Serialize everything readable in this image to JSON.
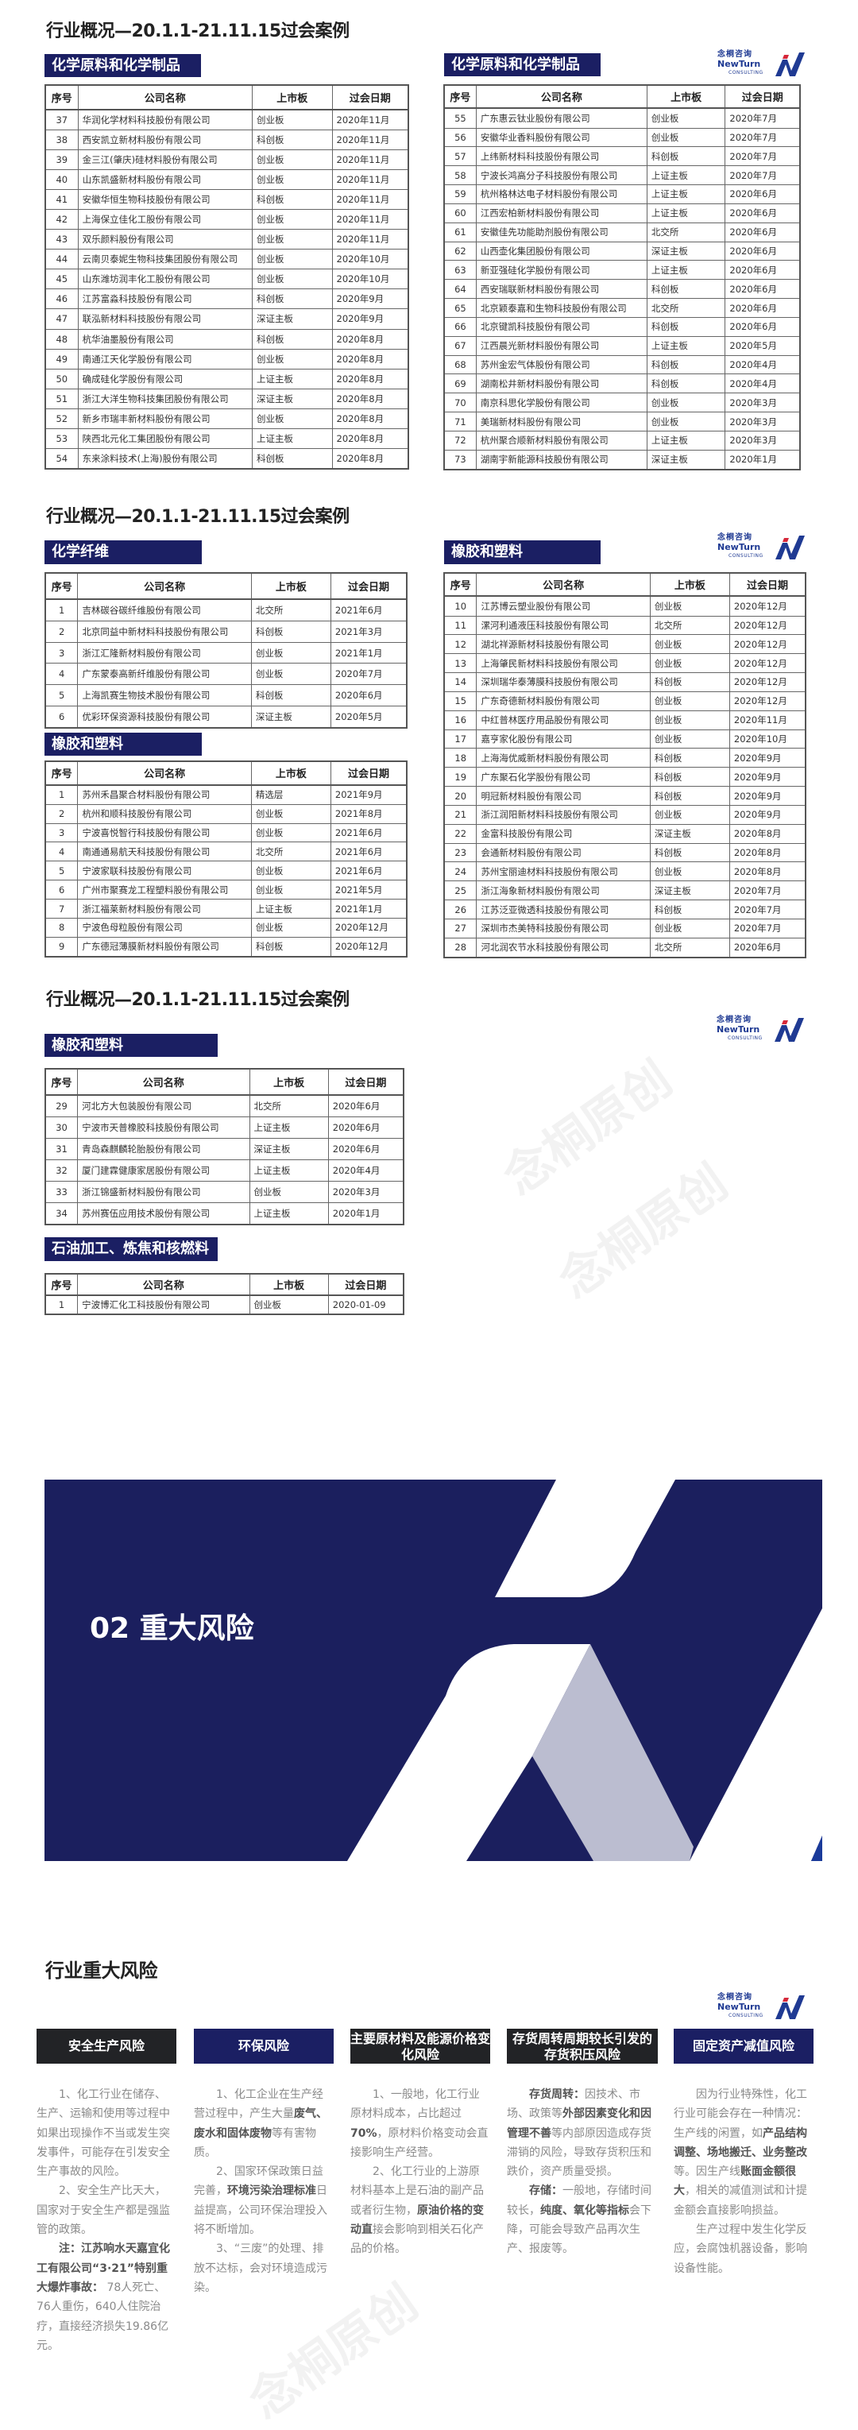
{
  "page_title": "行业概况—20.1.1-21.11.15过会案例",
  "logo": {
    "cn": "念桐咨询",
    "en": "NewTurn",
    "sub": "CONSULTING",
    "colors": {
      "blue": "#1f3a93",
      "red": "#d6283a"
    }
  },
  "watermark": "念桐原创",
  "table_headers": [
    "序号",
    "公司名称",
    "上市板",
    "过会日期"
  ],
  "colors": {
    "band": "#1b1f63",
    "banner": "#1b1f5e",
    "banner_accent": "#bbbdd0",
    "dark_header": "#222326"
  },
  "section1": {
    "left": {
      "category": "化学原料和化学制品",
      "rows": [
        [
          "37",
          "华润化学材料科技股份有限公司",
          "创业板",
          "2020年11月"
        ],
        [
          "38",
          "西安凯立新材料股份有限公司",
          "科创板",
          "2020年11月"
        ],
        [
          "39",
          "金三江(肇庆)硅材料股份有限公司",
          "创业板",
          "2020年11月"
        ],
        [
          "40",
          "山东凯盛新材料股份有限公司",
          "创业板",
          "2020年11月"
        ],
        [
          "41",
          "安徽华恒生物科技股份有限公司",
          "科创板",
          "2020年11月"
        ],
        [
          "42",
          "上海保立佳化工股份有限公司",
          "创业板",
          "2020年11月"
        ],
        [
          "43",
          "双乐颜料股份有限公司",
          "创业板",
          "2020年11月"
        ],
        [
          "44",
          "云南贝泰妮生物科技集团股份有限公司",
          "创业板",
          "2020年10月"
        ],
        [
          "45",
          "山东潍坊润丰化工股份有限公司",
          "创业板",
          "2020年10月"
        ],
        [
          "46",
          "江苏富淼科技股份有限公司",
          "科创板",
          "2020年9月"
        ],
        [
          "47",
          "联泓新材料科技股份有限公司",
          "深证主板",
          "2020年9月"
        ],
        [
          "48",
          "杭华油墨股份有限公司",
          "科创板",
          "2020年8月"
        ],
        [
          "49",
          "南通江天化学股份有限公司",
          "创业板",
          "2020年8月"
        ],
        [
          "50",
          "确成硅化学股份有限公司",
          "上证主板",
          "2020年8月"
        ],
        [
          "51",
          "浙江大洋生物科技集团股份有限公司",
          "深证主板",
          "2020年8月"
        ],
        [
          "52",
          "新乡市瑞丰新材料股份有限公司",
          "创业板",
          "2020年8月"
        ],
        [
          "53",
          "陕西北元化工集团股份有限公司",
          "上证主板",
          "2020年8月"
        ],
        [
          "54",
          "东来涂料技术(上海)股份有限公司",
          "科创板",
          "2020年8月"
        ]
      ]
    },
    "right": {
      "category": "化学原料和化学制品",
      "rows": [
        [
          "55",
          "广东惠云钛业股份有限公司",
          "创业板",
          "2020年7月"
        ],
        [
          "56",
          "安徽华业香料股份有限公司",
          "创业板",
          "2020年7月"
        ],
        [
          "57",
          "上纬新材料科技股份有限公司",
          "科创板",
          "2020年7月"
        ],
        [
          "58",
          "宁波长鸿高分子科技股份有限公司",
          "上证主板",
          "2020年7月"
        ],
        [
          "59",
          "杭州格林达电子材料股份有限公司",
          "上证主板",
          "2020年6月"
        ],
        [
          "60",
          "江西宏柏新材料股份有限公司",
          "上证主板",
          "2020年6月"
        ],
        [
          "61",
          "安徽佳先功能助剂股份有限公司",
          "北交所",
          "2020年6月"
        ],
        [
          "62",
          "山西壶化集团股份有限公司",
          "深证主板",
          "2020年6月"
        ],
        [
          "63",
          "新亚强硅化学股份有限公司",
          "上证主板",
          "2020年6月"
        ],
        [
          "64",
          "西安瑞联新材料股份有限公司",
          "科创板",
          "2020年6月"
        ],
        [
          "65",
          "北京颖泰嘉和生物科技股份有限公司",
          "北交所",
          "2020年6月"
        ],
        [
          "66",
          "北京键凯科技股份有限公司",
          "科创板",
          "2020年6月"
        ],
        [
          "67",
          "江西晨光新材料股份有限公司",
          "上证主板",
          "2020年5月"
        ],
        [
          "68",
          "苏州金宏气体股份有限公司",
          "科创板",
          "2020年4月"
        ],
        [
          "69",
          "湖南松井新材料股份有限公司",
          "科创板",
          "2020年4月"
        ],
        [
          "70",
          "南京科思化学股份有限公司",
          "创业板",
          "2020年3月"
        ],
        [
          "71",
          "美瑞新材料股份有限公司",
          "创业板",
          "2020年3月"
        ],
        [
          "72",
          "杭州聚合顺新材料股份有限公司",
          "上证主板",
          "2020年3月"
        ],
        [
          "73",
          "湖南宇新能源科技股份有限公司",
          "深证主板",
          "2020年1月"
        ]
      ]
    }
  },
  "section2": {
    "fiber": {
      "category": "化学纤维",
      "rows": [
        [
          "1",
          "吉林碳谷碳纤维股份有限公司",
          "北交所",
          "2021年6月"
        ],
        [
          "2",
          "北京同益中新材料科技股份有限公司",
          "科创板",
          "2021年3月"
        ],
        [
          "3",
          "浙江汇隆新材料股份有限公司",
          "创业板",
          "2021年1月"
        ],
        [
          "4",
          "广东蒙泰高新纤维股份有限公司",
          "创业板",
          "2020年7月"
        ],
        [
          "5",
          "上海凯赛生物技术股份有限公司",
          "科创板",
          "2020年6月"
        ],
        [
          "6",
          "优彩环保资源科技股份有限公司",
          "深证主板",
          "2020年5月"
        ]
      ]
    },
    "rubber_left": {
      "category": "橡胶和塑料",
      "rows": [
        [
          "1",
          "苏州禾昌聚合材料股份有限公司",
          "精选层",
          "2021年9月"
        ],
        [
          "2",
          "杭州和顺科技股份有限公司",
          "创业板",
          "2021年8月"
        ],
        [
          "3",
          "宁波喜悦智行科技股份有限公司",
          "创业板",
          "2021年6月"
        ],
        [
          "4",
          "南通通易航天科技股份有限公司",
          "北交所",
          "2021年6月"
        ],
        [
          "5",
          "宁波家联科技股份有限公司",
          "创业板",
          "2021年6月"
        ],
        [
          "6",
          "广州市聚赛龙工程塑料股份有限公司",
          "创业板",
          "2021年5月"
        ],
        [
          "7",
          "浙江福莱新材料股份有限公司",
          "上证主板",
          "2021年1月"
        ],
        [
          "8",
          "宁波色母粒股份有限公司",
          "创业板",
          "2020年12月"
        ],
        [
          "9",
          "广东德冠薄膜新材料股份有限公司",
          "科创板",
          "2020年12月"
        ]
      ]
    },
    "rubber_right": {
      "category": "橡胶和塑料",
      "rows": [
        [
          "10",
          "江苏博云塑业股份有限公司",
          "创业板",
          "2020年12月"
        ],
        [
          "11",
          "漯河利通液压科技股份有限公司",
          "北交所",
          "2020年12月"
        ],
        [
          "12",
          "湖北祥源新材科技股份有限公司",
          "创业板",
          "2020年12月"
        ],
        [
          "13",
          "上海肇民新材料科技股份有限公司",
          "创业板",
          "2020年12月"
        ],
        [
          "14",
          "深圳瑞华泰薄膜科技股份有限公司",
          "科创板",
          "2020年12月"
        ],
        [
          "15",
          "广东奇德新材料股份有限公司",
          "创业板",
          "2020年12月"
        ],
        [
          "16",
          "中红普林医疗用品股份有限公司",
          "创业板",
          "2020年11月"
        ],
        [
          "17",
          "嘉亨家化股份有限公司",
          "创业板",
          "2020年10月"
        ],
        [
          "18",
          "上海海优威新材料股份有限公司",
          "科创板",
          "2020年9月"
        ],
        [
          "19",
          "广东聚石化学股份有限公司",
          "科创板",
          "2020年9月"
        ],
        [
          "20",
          "明冠新材料股份有限公司",
          "科创板",
          "2020年9月"
        ],
        [
          "21",
          "浙江润阳新材料科技股份有限公司",
          "创业板",
          "2020年9月"
        ],
        [
          "22",
          "金富科技股份有限公司",
          "深证主板",
          "2020年8月"
        ],
        [
          "23",
          "会通新材料股份有限公司",
          "科创板",
          "2020年8月"
        ],
        [
          "24",
          "苏州宝丽迪材料科技股份有限公司",
          "创业板",
          "2020年8月"
        ],
        [
          "25",
          "浙江海象新材料股份有限公司",
          "深证主板",
          "2020年7月"
        ],
        [
          "26",
          "江苏泛亚微透科技股份有限公司",
          "科创板",
          "2020年7月"
        ],
        [
          "27",
          "深圳市杰美特科技股份有限公司",
          "创业板",
          "2020年7月"
        ],
        [
          "28",
          "河北润农节水科技股份有限公司",
          "北交所",
          "2020年6月"
        ]
      ]
    }
  },
  "section3": {
    "rubber": {
      "category": "橡胶和塑料",
      "rows": [
        [
          "29",
          "河北方大包装股份有限公司",
          "北交所",
          "2020年6月"
        ],
        [
          "30",
          "宁波市天普橡胶科技股份有限公司",
          "上证主板",
          "2020年6月"
        ],
        [
          "31",
          "青岛森麒麟轮胎股份有限公司",
          "深证主板",
          "2020年6月"
        ],
        [
          "32",
          "厦门建霖健康家居股份有限公司",
          "上证主板",
          "2020年4月"
        ],
        [
          "33",
          "浙江锦盛新材料股份有限公司",
          "创业板",
          "2020年3月"
        ],
        [
          "34",
          "苏州赛伍应用技术股份有限公司",
          "上证主板",
          "2020年1月"
        ]
      ]
    },
    "petro": {
      "category": "石油加工、炼焦和核燃料",
      "rows": [
        [
          "1",
          "宁波博汇化工科技股份有限公司",
          "创业板",
          "2020-01-09"
        ]
      ]
    }
  },
  "banner": {
    "title": "02 重大风险"
  },
  "risks": {
    "title": "行业重大风险",
    "columns": [
      {
        "header": "安全生产风险",
        "paragraphs": [
          [
            {
              "t": "1、化工行业在储存、生产、运输和使用等过程中如果出现操作不当或发生突发事件，可能存在引发安全生产事故的风险。"
            }
          ],
          [
            {
              "t": "2、安全生产比天大，国家对于安全生产都是强监管的政策。"
            }
          ],
          [
            {
              "t": "注：江苏响水天嘉宜化工有限公司“3·21”特别重大爆炸事故：",
              "b": true
            },
            {
              "t": " 78人死亡、76人重伤，640人住院治疗，直接经济损失19.86亿元。"
            }
          ]
        ]
      },
      {
        "header": "环保风险",
        "paragraphs": [
          [
            {
              "t": "1、化工企业在生产经营过程中，产生大量"
            },
            {
              "t": "废气、废水和固体废物",
              "b": true
            },
            {
              "t": "等有害物质。"
            }
          ],
          [
            {
              "t": "2、国家环保政策日益完善，"
            },
            {
              "t": "环境污染治理标准",
              "b": true
            },
            {
              "t": "日益提高，公司环保治理投入将不断增加。"
            }
          ],
          [
            {
              "t": "3、“三废”的处理、排放不达标，会对环境造成污染。"
            }
          ]
        ]
      },
      {
        "header": "主要原材料及能源价格变化风险",
        "paragraphs": [
          [
            {
              "t": "1、一般地，化工行业原材料成本，占比超过"
            },
            {
              "t": "70%",
              "b": true
            },
            {
              "t": "，原材料价格变动会直接影响生产经营。"
            }
          ],
          [
            {
              "t": "2、化工行业的上游原材料基本上是石油的副产品或者衍生物，"
            },
            {
              "t": "原油价格的变动直",
              "b": true
            },
            {
              "t": "接会影响到相关石化产品的价格。"
            }
          ]
        ]
      },
      {
        "header": "存货周转周期较长引发的存货积压风险",
        "paragraphs": [
          [
            {
              "t": "存货周转：",
              "b": true
            },
            {
              "t": "因技术、市场、政策等"
            },
            {
              "t": "外部因素变化和因管理不善",
              "b": true
            },
            {
              "t": "等内部原因造成存货滞销的风险，导致存货积压和跌价，资产质量受损。"
            }
          ],
          [
            {
              "t": "存储：",
              "b": true
            },
            {
              "t": "一般地，存储时间较长，"
            },
            {
              "t": "纯度、氧化等指标",
              "b": true
            },
            {
              "t": "会下降，可能会导致产品再次生产、报废等。"
            }
          ]
        ]
      },
      {
        "header": "固定资产减值风险",
        "paragraphs": [
          [
            {
              "t": "因为行业特殊性，化工行业可能会存在一种情况：生产线的闲置，如"
            },
            {
              "t": "产品结构调整、场地搬迁、业务整改",
              "b": true
            },
            {
              "t": "等。因生产线"
            },
            {
              "t": "账面金额很大",
              "b": true
            },
            {
              "t": "，相关的减值测试和计提金额会直接影响损益。"
            }
          ],
          [
            {
              "t": "生产过程中发生化学反应，会腐蚀机器设备，影响设备性能。"
            }
          ]
        ]
      }
    ]
  }
}
